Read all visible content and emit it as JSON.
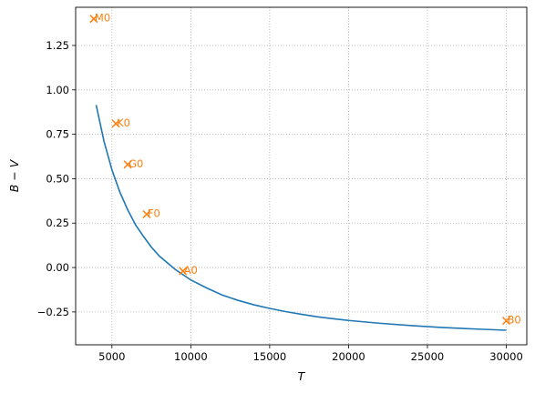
{
  "chart_data": {
    "type": "line",
    "title": "",
    "xlabel": "T",
    "ylabel": "B − V",
    "xlim": [
      2700,
      31300
    ],
    "ylim": [
      -0.435,
      1.465
    ],
    "xticks": [
      5000,
      10000,
      15000,
      20000,
      25000,
      30000
    ],
    "yticks": [
      -0.25,
      0,
      0.25,
      0.5,
      0.75,
      1.0,
      1.25
    ],
    "ytick_labels": [
      "−0.25",
      "0.00",
      "0.25",
      "0.50",
      "0.75",
      "1.00",
      "1.25"
    ],
    "grid": true,
    "colors": {
      "line": "#1f77b4",
      "markers": "#ff7f0e"
    },
    "series": [
      {
        "type": "line",
        "x": [
          4000,
          4500,
          5000,
          5500,
          6000,
          6500,
          7000,
          7500,
          8000,
          9000,
          10000,
          11000,
          12000,
          13000,
          14000,
          15000,
          16000,
          17000,
          18000,
          19000,
          20000,
          22000,
          24000,
          26000,
          28000,
          30000
        ],
        "y": [
          0.915,
          0.71,
          0.55,
          0.425,
          0.325,
          0.24,
          0.175,
          0.115,
          0.065,
          -0.01,
          -0.07,
          -0.115,
          -0.155,
          -0.185,
          -0.21,
          -0.23,
          -0.248,
          -0.263,
          -0.277,
          -0.288,
          -0.298,
          -0.314,
          -0.327,
          -0.338,
          -0.346,
          -0.353
        ]
      },
      {
        "type": "scatter",
        "marker": "x",
        "points": [
          {
            "label": "M0",
            "x": 3850,
            "y": 1.4
          },
          {
            "label": "K0",
            "x": 5250,
            "y": 0.81
          },
          {
            "label": "G0",
            "x": 6000,
            "y": 0.58
          },
          {
            "label": "F0",
            "x": 7200,
            "y": 0.3
          },
          {
            "label": "A0",
            "x": 9500,
            "y": -0.02
          },
          {
            "label": "B0",
            "x": 30000,
            "y": -0.3
          }
        ]
      }
    ]
  }
}
